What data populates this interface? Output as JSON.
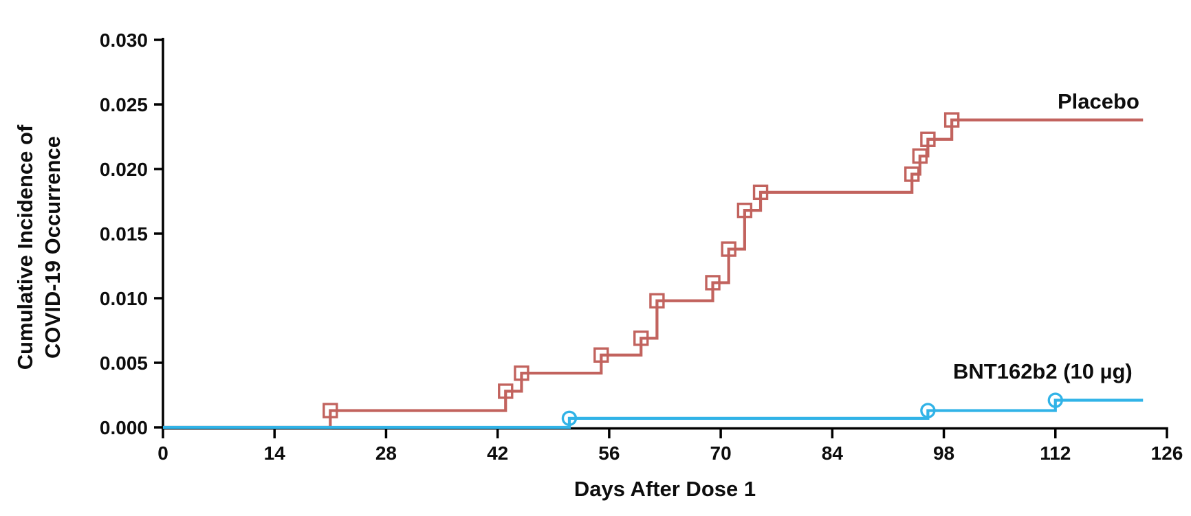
{
  "chart_data": {
    "type": "line",
    "subtype": "step-function-cumulative-incidence",
    "title": "",
    "xlabel": "Days After Dose 1",
    "ylabel_lines": [
      "Cumulative Incidence of",
      "COVID-19 Occurrence"
    ],
    "xlim": [
      0,
      126
    ],
    "ylim": [
      0,
      0.03
    ],
    "x_ticks": [
      0,
      14,
      28,
      42,
      56,
      70,
      84,
      98,
      112,
      126
    ],
    "y_tick_labels": [
      "0.000",
      "0.005",
      "0.010",
      "0.015",
      "0.020",
      "0.025",
      "0.030"
    ],
    "grid": false,
    "legend_position": "labels-at-line-ends",
    "axis_color": "#000000",
    "series": [
      {
        "name": "Placebo",
        "color": "#c2635e",
        "marker": "open-square",
        "start_day": 0,
        "start_value": 0,
        "curve_end_day": 123,
        "final_value": 0.0238,
        "events": [
          {
            "day": 21,
            "cum_incidence": 0.0013
          },
          {
            "day": 43,
            "cum_incidence": 0.0028
          },
          {
            "day": 45,
            "cum_incidence": 0.0042
          },
          {
            "day": 55,
            "cum_incidence": 0.0056
          },
          {
            "day": 60,
            "cum_incidence": 0.0069
          },
          {
            "day": 62,
            "cum_incidence": 0.0098
          },
          {
            "day": 69,
            "cum_incidence": 0.0112
          },
          {
            "day": 71,
            "cum_incidence": 0.0138
          },
          {
            "day": 73,
            "cum_incidence": 0.0168
          },
          {
            "day": 75,
            "cum_incidence": 0.0182
          },
          {
            "day": 94,
            "cum_incidence": 0.0196
          },
          {
            "day": 95,
            "cum_incidence": 0.021
          },
          {
            "day": 96,
            "cum_incidence": 0.0223
          },
          {
            "day": 99,
            "cum_incidence": 0.0238
          }
        ]
      },
      {
        "name": "BNT162b2 (10 µg)",
        "color": "#31b3e7",
        "marker": "open-circle",
        "start_day": 0,
        "start_value": 0,
        "curve_end_day": 123,
        "final_value": 0.0021,
        "events": [
          {
            "day": 51,
            "cum_incidence": 0.0007
          },
          {
            "day": 96,
            "cum_incidence": 0.0013
          },
          {
            "day": 112,
            "cum_incidence": 0.0021
          }
        ]
      }
    ]
  }
}
